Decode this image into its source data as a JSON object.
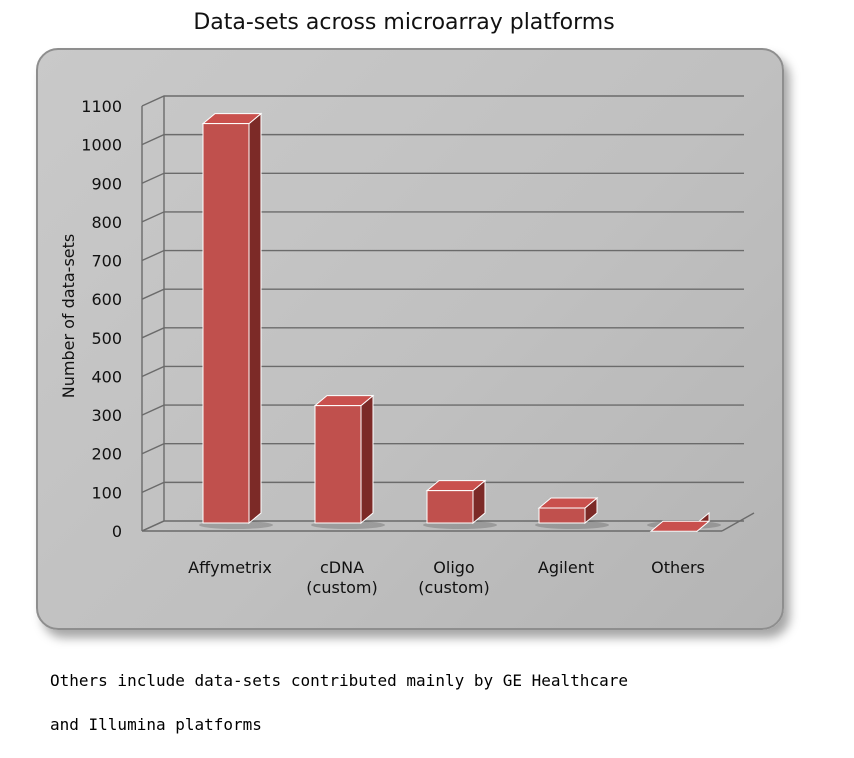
{
  "chart_data": {
    "type": "bar",
    "title": "Data-sets across microarray platforms",
    "xlabel": "",
    "ylabel": "Number of data-sets",
    "ylim": [
      0,
      1100
    ],
    "yticks": [
      0,
      100,
      200,
      300,
      400,
      500,
      600,
      700,
      800,
      900,
      1000,
      1100
    ],
    "categories": [
      [
        "Affymetrix"
      ],
      [
        "cDNA",
        "(custom)"
      ],
      [
        "Oligo",
        "(custom)"
      ],
      [
        "Agilent"
      ],
      [
        "Others"
      ]
    ],
    "values": [
      1070,
      340,
      120,
      75,
      15
    ],
    "grid": true,
    "style": "3d-column",
    "colors": {
      "bar_front": "#c0504d",
      "bar_top": "#c9504d",
      "bar_side": "#7c2a27",
      "grid": "#6b6b6b"
    }
  },
  "footnote": {
    "line1": "Others include data-sets contributed mainly by GE Healthcare",
    "line2": "and Illumina platforms"
  }
}
